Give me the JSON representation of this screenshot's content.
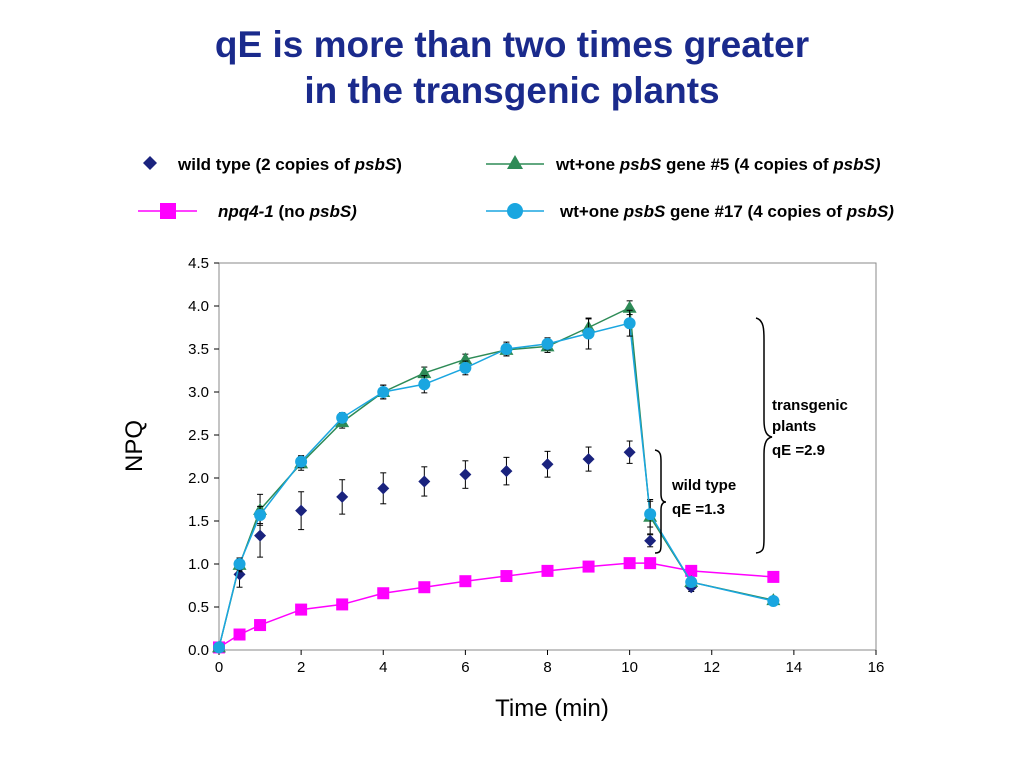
{
  "title": {
    "line1": "qE is more than two times greater",
    "line2": "in the transgenic plants"
  },
  "colors": {
    "title": "#1a2a8c",
    "wild_type": "#1a237e",
    "npq4": "#ff00ff",
    "gene5": "#2e8b57",
    "gene17": "#1aa6e0"
  },
  "legend": {
    "wild_type": {
      "segments": [
        {
          "t": "wild type (2 copies of ",
          "i": false
        },
        {
          "t": "psbS",
          "i": true
        },
        {
          "t": ")",
          "i": false
        }
      ]
    },
    "gene5": {
      "segments": [
        {
          "t": "wt+one ",
          "i": false
        },
        {
          "t": "psbS",
          "i": true
        },
        {
          "t": " gene #5 (4 copies of ",
          "i": false
        },
        {
          "t": "psbS)",
          "i": true
        }
      ]
    },
    "npq4": {
      "segments": [
        {
          "t": "npq4-1",
          "i": true
        },
        {
          "t": " (no ",
          "i": false
        },
        {
          "t": "psbS)",
          "i": true
        }
      ]
    },
    "gene17": {
      "segments": [
        {
          "t": "wt+one ",
          "i": false
        },
        {
          "t": "psbS",
          "i": true
        },
        {
          "t": " gene #17 (4 copies of ",
          "i": false
        },
        {
          "t": "psbS)",
          "i": true
        }
      ]
    }
  },
  "annotations": {
    "transgenic": [
      "transgenic",
      "plants",
      "qE =2.9"
    ],
    "wild_type": [
      "wild type",
      "qE =1.3"
    ]
  },
  "chart_data": {
    "type": "scatter",
    "xlabel": "Time (min)",
    "ylabel": "NPQ",
    "xlim": [
      0,
      16
    ],
    "ylim": [
      0,
      4.5
    ],
    "xticks": [
      "0",
      "2",
      "4",
      "6",
      "8",
      "10",
      "12",
      "14",
      "16"
    ],
    "yticks": [
      "0.0",
      "0.5",
      "1.0",
      "1.5",
      "2.0",
      "2.5",
      "3.0",
      "3.5",
      "4.0",
      "4.5"
    ],
    "grid": false,
    "series": [
      {
        "name": "wild type (2 copies of psbS)",
        "key": "wild_type",
        "marker": "diamond",
        "line": false,
        "x": [
          0,
          0.5,
          1,
          2,
          3,
          4,
          5,
          6,
          7,
          8,
          9,
          10,
          10.5,
          11.5,
          13.5
        ],
        "y": [
          0.03,
          0.88,
          1.33,
          1.62,
          1.78,
          1.88,
          1.96,
          2.04,
          2.08,
          2.16,
          2.22,
          2.3,
          1.27,
          0.73,
          0.58
        ],
        "err": [
          0.02,
          0.15,
          0.25,
          0.22,
          0.2,
          0.18,
          0.17,
          0.16,
          0.16,
          0.15,
          0.14,
          0.13,
          0.07,
          0.05,
          0.04
        ]
      },
      {
        "name": "npq4-1 (no psbS)",
        "key": "npq4",
        "marker": "square",
        "line": true,
        "x": [
          0,
          0.5,
          1,
          2,
          3,
          4,
          5,
          6,
          7,
          8,
          9,
          10,
          10.5,
          11.5,
          13.5
        ],
        "y": [
          0.03,
          0.18,
          0.29,
          0.47,
          0.53,
          0.66,
          0.73,
          0.8,
          0.86,
          0.92,
          0.97,
          1.01,
          1.01,
          0.92,
          0.85
        ],
        "err": []
      },
      {
        "name": "wt+one psbS gene #5 (4 copies of psbS)",
        "key": "gene5",
        "marker": "triangle",
        "line": true,
        "x": [
          0,
          0.5,
          1,
          2,
          3,
          4,
          5,
          6,
          7,
          8,
          9,
          10,
          10.5,
          11.5,
          13.5
        ],
        "y": [
          0.03,
          0.99,
          1.63,
          2.17,
          2.65,
          3.0,
          3.22,
          3.38,
          3.49,
          3.53,
          3.75,
          3.98,
          1.55,
          0.79,
          0.58
        ],
        "err": [
          0.02,
          0.08,
          0.18,
          0.08,
          0.07,
          0.08,
          0.07,
          0.06,
          0.07,
          0.07,
          0.1,
          0.08,
          0.2,
          0.04,
          0.03
        ]
      },
      {
        "name": "wt+one psbS gene #17 (4 copies of psbS)",
        "key": "gene17",
        "marker": "circle",
        "line": true,
        "x": [
          0,
          0.5,
          1,
          2,
          3,
          4,
          5,
          6,
          7,
          8,
          9,
          10,
          10.5,
          11.5,
          13.5
        ],
        "y": [
          0.03,
          1.0,
          1.57,
          2.19,
          2.7,
          3.0,
          3.09,
          3.28,
          3.5,
          3.56,
          3.68,
          3.8,
          1.58,
          0.79,
          0.57
        ],
        "err": [
          0.02,
          0.07,
          0.1,
          0.07,
          0.06,
          0.08,
          0.1,
          0.08,
          0.08,
          0.07,
          0.18,
          0.15,
          0.15,
          0.04,
          0.03
        ]
      }
    ]
  }
}
